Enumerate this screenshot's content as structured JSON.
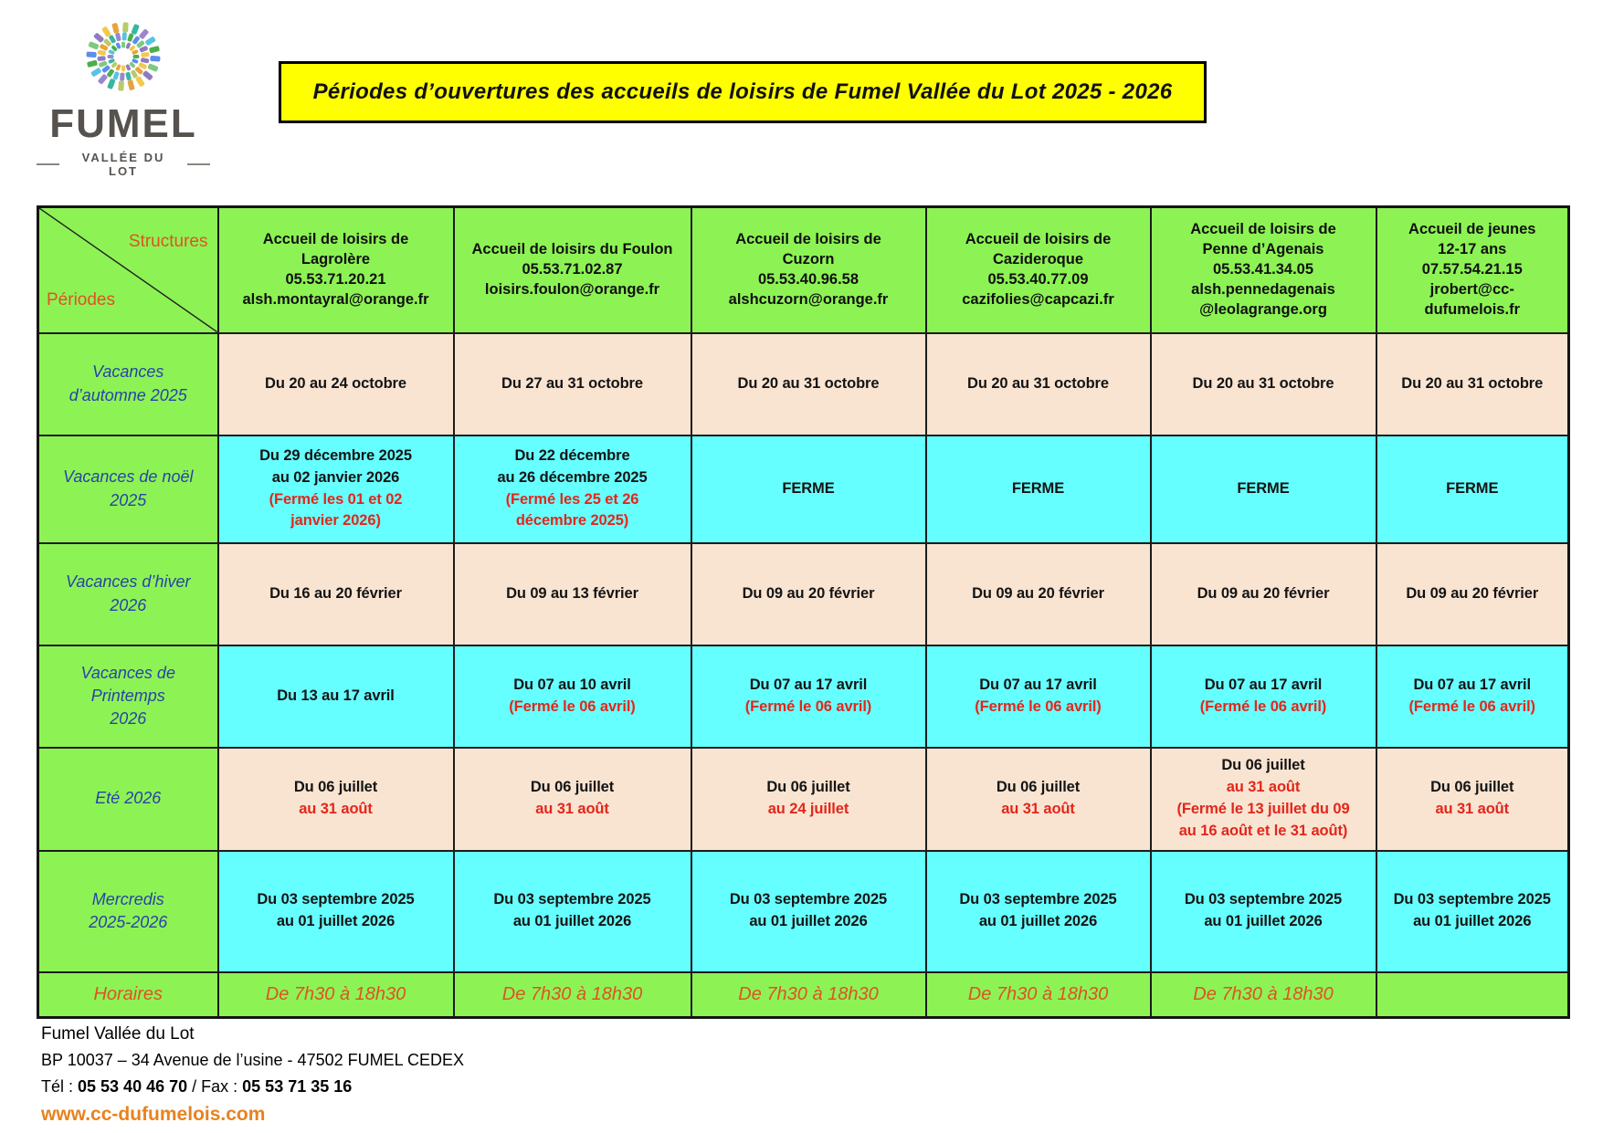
{
  "logo": {
    "brand": "FUMEL",
    "tagline": "VALLÉE DU LOT",
    "palette": [
      "#4daf4a",
      "#37b6a0",
      "#f2c94c",
      "#5b8def",
      "#9b87c9",
      "#e8a33d",
      "#7fc97f",
      "#59c3e3",
      "#b9ca6c",
      "#8f7bbf"
    ]
  },
  "title": "Périodes d’ouvertures des accueils de loisirs de Fumel Vallée du Lot 2025 - 2026",
  "colors": {
    "green": "#8DF355",
    "cyan": "#66FFFF",
    "beige": "#F9E4D1",
    "red": "#E3261B",
    "blue": "#2843A8",
    "orange": "#DE5322",
    "weborange": "#E8821E",
    "yellow": "#FFFF00"
  },
  "table": {
    "corner": {
      "structures": "Structures",
      "periodes": "Périodes"
    },
    "columns": [
      {
        "name": "lagrolere",
        "lines": [
          "Accueil de loisirs de",
          "Lagrolère",
          "05.53.71.20.21",
          "alsh.montayral@orange.fr"
        ]
      },
      {
        "name": "foulon",
        "lines": [
          "Accueil de loisirs du Foulon",
          "05.53.71.02.87",
          "loisirs.foulon@orange.fr"
        ]
      },
      {
        "name": "cuzorn",
        "lines": [
          "Accueil de loisirs de",
          "Cuzorn",
          "05.53.40.96.58",
          "alshcuzorn@orange.fr"
        ]
      },
      {
        "name": "cazideroque",
        "lines": [
          "Accueil de loisirs de",
          "Cazideroque",
          "05.53.40.77.09",
          "cazifolies@capcazi.fr"
        ]
      },
      {
        "name": "penne-dagenais",
        "lines": [
          "Accueil de loisirs de",
          "Penne d’Agenais",
          "05.53.41.34.05",
          "alsh.pennedagenais",
          "@leolagrange.org"
        ]
      },
      {
        "name": "accueil-jeunes",
        "lines": [
          "Accueil de jeunes",
          "12-17 ans",
          "07.57.54.21.15",
          "jrobert@cc-dufumelois.fr"
        ]
      }
    ],
    "rows": [
      {
        "id": "vacances-automne-2025",
        "label_lines": [
          "Vacances",
          "d’automne 2025"
        ],
        "bg": "beige",
        "cells": [
          [
            {
              "text": "Du 20 au 24 octobre"
            }
          ],
          [
            {
              "text": "Du 27 au 31 octobre"
            }
          ],
          [
            {
              "text": "Du 20 au 31 octobre"
            }
          ],
          [
            {
              "text": "Du 20 au 31 octobre"
            }
          ],
          [
            {
              "text": "Du 20 au 31 octobre"
            }
          ],
          [
            {
              "text": "Du 20 au 31 octobre"
            }
          ]
        ]
      },
      {
        "id": "vacances-noel-2025",
        "label_lines": [
          "Vacances de noël",
          "2025"
        ],
        "bg": "cyan",
        "cells": [
          [
            {
              "text": "Du 29 décembre 2025"
            },
            {
              "text": "au 02 janvier 2026"
            },
            {
              "text": "(Fermé les 01 et 02",
              "red": true
            },
            {
              "text": "janvier 2026)",
              "red": true
            }
          ],
          [
            {
              "text": "Du 22 décembre"
            },
            {
              "text": "au 26 décembre 2025"
            },
            {
              "text": "(Fermé les 25 et 26",
              "red": true
            },
            {
              "text": "décembre 2025)",
              "red": true
            }
          ],
          [
            {
              "text": "FERME"
            }
          ],
          [
            {
              "text": "FERME"
            }
          ],
          [
            {
              "text": "FERME"
            }
          ],
          [
            {
              "text": "FERME"
            }
          ]
        ]
      },
      {
        "id": "vacances-hiver-2026",
        "label_lines": [
          "Vacances d’hiver",
          "2026"
        ],
        "bg": "beige",
        "cells": [
          [
            {
              "text": "Du 16 au 20 février"
            }
          ],
          [
            {
              "text": "Du 09 au 13 février"
            }
          ],
          [
            {
              "text": "Du 09 au 20 février"
            }
          ],
          [
            {
              "text": "Du 09 au 20 février"
            }
          ],
          [
            {
              "text": "Du 09 au 20 février"
            }
          ],
          [
            {
              "text": "Du 09 au 20 février"
            }
          ]
        ]
      },
      {
        "id": "vacances-printemps-2026",
        "label_lines": [
          "Vacances de",
          "Printemps",
          "2026"
        ],
        "bg": "cyan",
        "cells": [
          [
            {
              "text": "Du 13 au 17 avril"
            }
          ],
          [
            {
              "text": "Du 07 au 10 avril"
            },
            {
              "text": "(Fermé le 06 avril)",
              "red": true
            }
          ],
          [
            {
              "text": "Du 07 au 17 avril"
            },
            {
              "text": "(Fermé le 06 avril)",
              "red": true
            }
          ],
          [
            {
              "text": "Du 07 au 17 avril"
            },
            {
              "text": "(Fermé le 06 avril)",
              "red": true
            }
          ],
          [
            {
              "text": "Du 07 au 17 avril"
            },
            {
              "text": "(Fermé le 06 avril)",
              "red": true
            }
          ],
          [
            {
              "text": "Du 07 au 17 avril"
            },
            {
              "text": "(Fermé le 06 avril)",
              "red": true
            }
          ]
        ]
      },
      {
        "id": "ete-2026",
        "label_lines": [
          "Eté 2026"
        ],
        "bg": "beige",
        "cells": [
          [
            {
              "text": "Du 06 juillet"
            },
            {
              "text": "au 31 août",
              "red": true
            }
          ],
          [
            {
              "text": "Du 06 juillet"
            },
            {
              "text": "au 31 août",
              "red": true
            }
          ],
          [
            {
              "text": "Du 06 juillet"
            },
            {
              "text": "au 24 juillet",
              "red": true
            }
          ],
          [
            {
              "text": "Du 06 juillet"
            },
            {
              "text": "au 31 août",
              "red": true
            }
          ],
          [
            {
              "text": "Du 06 juillet"
            },
            {
              "text": "au 31 août",
              "red": true
            },
            {
              "text": "(Fermé le 13 juillet du 09",
              "red": true
            },
            {
              "text": "au 16 août et le 31 août)",
              "red": true
            }
          ],
          [
            {
              "text": "Du 06 juillet"
            },
            {
              "text": "au 31 août",
              "red": true
            }
          ]
        ]
      },
      {
        "id": "mercredis-2025-2026",
        "label_lines": [
          "Mercredis",
          "2025-2026"
        ],
        "bg": "cyan",
        "cells": [
          [
            {
              "text": "Du 03 septembre 2025"
            },
            {
              "text": "au 01 juillet 2026"
            }
          ],
          [
            {
              "text": "Du 03 septembre 2025"
            },
            {
              "text": "au 01 juillet 2026"
            }
          ],
          [
            {
              "text": "Du 03 septembre 2025"
            },
            {
              "text": "au 01 juillet 2026"
            }
          ],
          [
            {
              "text": "Du 03 septembre 2025"
            },
            {
              "text": "au 01 juillet 2026"
            }
          ],
          [
            {
              "text": "Du 03 septembre 2025"
            },
            {
              "text": "au 01 juillet 2026"
            }
          ],
          [
            {
              "text": "Du 03 septembre 2025"
            },
            {
              "text": "au 01 juillet 2026"
            }
          ]
        ]
      }
    ],
    "horaires": {
      "label": "Horaires",
      "values": [
        "De 7h30 à 18h30",
        "De 7h30 à 18h30",
        "De 7h30 à 18h30",
        "De 7h30 à 18h30",
        "De 7h30 à 18h30",
        ""
      ]
    }
  },
  "footer": {
    "line1": "Fumel Vallée du Lot",
    "line2": "BP 10037 – 34 Avenue de l’usine - 47502 FUMEL CEDEX",
    "tel_label": "Tél : ",
    "tel": "05 53 40 46 70",
    "fax_label": " / Fax : ",
    "fax": "05 53 71 35 16",
    "website": "www.cc-dufumelois.com"
  }
}
